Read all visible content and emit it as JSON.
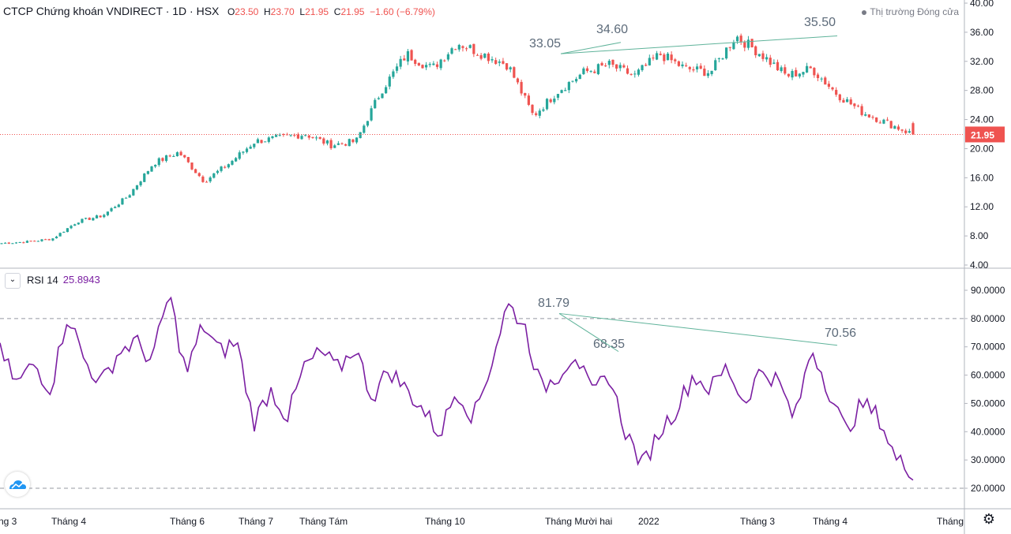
{
  "header": {
    "symbol_label": "CTCP Chứng khoán VNDIRECT · 1D · HSX",
    "open_prefix": "O",
    "open": "23.50",
    "high_prefix": "H",
    "high": "23.70",
    "low_prefix": "L",
    "low": "21.95",
    "close_prefix": "C",
    "close": "21.95",
    "change": "−1.60 (−6.79%)",
    "market_status": "Thị trường Đóng cửa"
  },
  "rsi_header": {
    "label": "RSI 14",
    "value": "25.8943"
  },
  "icons": {
    "collapse": "chevron-down-icon",
    "settings": "gear-icon",
    "logo": "cloud-logo-icon"
  },
  "colors": {
    "up": "#26a69a",
    "down": "#ef5350",
    "rsi": "#7b1fa2",
    "trendline": "#5fb39a",
    "last_price": "#ef5350"
  },
  "chart_data": [
    {
      "type": "candlestick",
      "y_axis_ticks": [
        "40.00",
        "36.00",
        "32.00",
        "28.00",
        "24.00",
        "20.00",
        "16.00",
        "12.00",
        "8.00",
        "4.00"
      ],
      "ylim": [
        4,
        40
      ],
      "x_axis_labels": [
        "ng 3",
        "Tháng 4",
        "Tháng 6",
        "Tháng 7",
        "Tháng Tám",
        "Tháng 10",
        "Tháng Mười hai",
        "2022",
        "Tháng 3",
        "Tháng 4",
        "Tháng"
      ],
      "last_price_label": "21.95",
      "series": [
        {
          "close": [
            7.0,
            7.2,
            7.6,
            10.0,
            10.8,
            13.5,
            18.0,
            19.5,
            15.5,
            18.0,
            21.0,
            21.5,
            22.0,
            20.5,
            21.0,
            28.0,
            33.0,
            31.0,
            34.6,
            33.0,
            31.5,
            24.5,
            28.0,
            30.5,
            31.5,
            30.0,
            33.0,
            31.0,
            30.5,
            35.5,
            33.0,
            30.0,
            31.0,
            27.5,
            25.0,
            23.5,
            21.95
          ]
        }
      ],
      "annotations": [
        {
          "label": "33.05"
        },
        {
          "label": "34.60"
        },
        {
          "label": "35.50"
        }
      ],
      "trendline": {
        "from": 33.05,
        "to": 35.5
      }
    },
    {
      "type": "line",
      "name": "RSI 14",
      "y_axis_ticks": [
        "90.0000",
        "80.0000",
        "70.0000",
        "60.0000",
        "50.0000",
        "40.0000",
        "30.0000",
        "20.0000"
      ],
      "ylim": [
        16,
        95
      ],
      "levels": [
        80,
        20
      ],
      "series": [
        {
          "values": [
            68,
            57,
            64,
            55,
            82,
            65,
            57,
            68,
            72,
            65,
            89,
            60,
            78,
            68,
            72,
            43,
            55,
            45,
            63,
            68,
            62,
            70,
            52,
            62,
            55,
            48,
            39,
            55,
            45,
            63,
            85,
            78,
            55,
            60,
            68,
            53,
            60,
            40,
            28,
            40,
            48,
            60,
            55,
            63,
            50,
            62,
            58,
            44,
            70,
            55,
            40,
            50,
            45,
            30,
            26
          ]
        }
      ],
      "annotations": [
        {
          "label": "81.79"
        },
        {
          "label": "68.35"
        },
        {
          "label": "70.56"
        }
      ]
    }
  ]
}
